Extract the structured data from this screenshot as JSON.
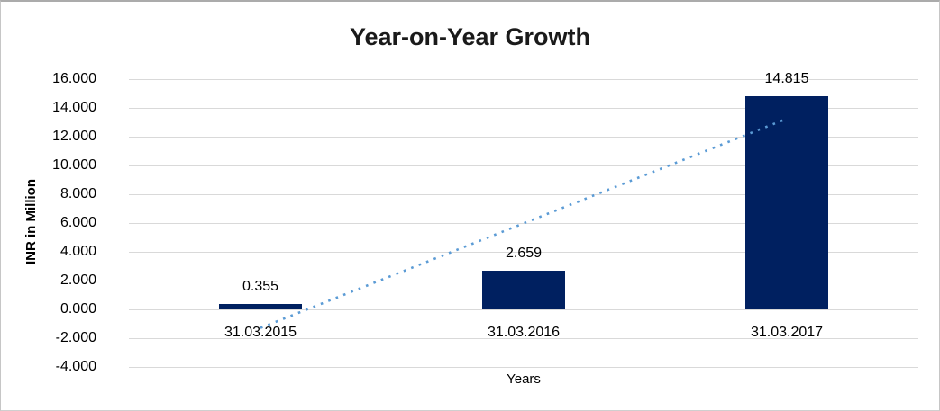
{
  "chart_data": {
    "type": "bar",
    "title": "Year-on-Year Growth",
    "xlabel": "Years",
    "ylabel": "INR in Million",
    "categories": [
      "31.03.2015",
      "31.03.2016",
      "31.03.2017"
    ],
    "values": [
      0.355,
      2.659,
      14.815
    ],
    "data_labels": [
      "0.355",
      "2.659",
      "14.815"
    ],
    "ylim": [
      -4,
      16
    ],
    "ytick_step": 2,
    "ytick_labels": [
      "16.000",
      "14.000",
      "12.000",
      "10.000",
      "8.000",
      "6.000",
      "4.000",
      "2.000",
      "0.000",
      "-2.000",
      "-4.000"
    ],
    "grid": true,
    "legend": false,
    "colors": {
      "bar": "#002060",
      "trendline": "#5b9bd5",
      "gridline": "#d9d9d9",
      "label_text": "#000000",
      "title_text": "#1a1a1a"
    },
    "trendline": {
      "type": "linear",
      "style": "dotted",
      "from_category_index": 0,
      "to_category_index": 2,
      "start_value": -1.29,
      "end_value": 13.25
    }
  }
}
